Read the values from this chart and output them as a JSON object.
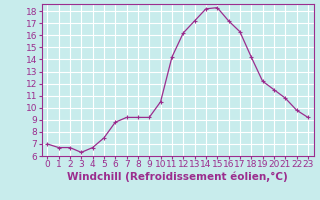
{
  "x": [
    0,
    1,
    2,
    3,
    4,
    5,
    6,
    7,
    8,
    9,
    10,
    11,
    12,
    13,
    14,
    15,
    16,
    17,
    18,
    19,
    20,
    21,
    22,
    23
  ],
  "y": [
    7.0,
    6.7,
    6.7,
    6.3,
    6.7,
    7.5,
    8.8,
    9.2,
    9.2,
    9.2,
    10.5,
    14.2,
    16.2,
    17.2,
    18.2,
    18.3,
    17.2,
    16.3,
    14.2,
    12.2,
    11.5,
    10.8,
    9.8,
    9.2
  ],
  "line_color": "#9b2d8e",
  "marker": "+",
  "xlabel": "Windchill (Refroidissement éolien,°C)",
  "xlabel_color": "#9b2d8e",
  "bg_color": "#c8ecec",
  "grid_color": "#ffffff",
  "tick_color": "#9b2d8e",
  "ylim": [
    6,
    18.6
  ],
  "yticks": [
    6,
    7,
    8,
    9,
    10,
    11,
    12,
    13,
    14,
    15,
    16,
    17,
    18
  ],
  "xlim": [
    -0.5,
    23.5
  ],
  "xticks": [
    0,
    1,
    2,
    3,
    4,
    5,
    6,
    7,
    8,
    9,
    10,
    11,
    12,
    13,
    14,
    15,
    16,
    17,
    18,
    19,
    20,
    21,
    22,
    23
  ],
  "xtick_labels": [
    "0",
    "1",
    "2",
    "3",
    "4",
    "5",
    "6",
    "7",
    "8",
    "9",
    "10",
    "11",
    "12",
    "13",
    "14",
    "15",
    "16",
    "17",
    "18",
    "19",
    "20",
    "21",
    "22",
    "23"
  ],
  "font_size": 6.5,
  "xlabel_fontsize": 7.5
}
